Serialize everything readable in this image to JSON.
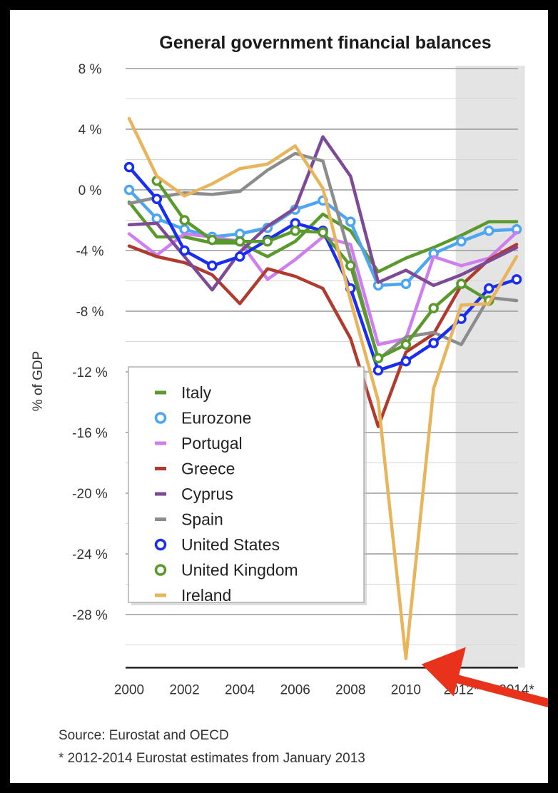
{
  "chart_data": {
    "type": "line",
    "title": "General government financial balances",
    "ylabel": "% of GDP",
    "xlabel": "",
    "x": [
      2000,
      2001,
      2002,
      2003,
      2004,
      2005,
      2006,
      2007,
      2008,
      2009,
      2010,
      2011,
      2012,
      2013,
      2014
    ],
    "xticks": [
      {
        "value": 2000,
        "label": "2000"
      },
      {
        "value": 2002,
        "label": "2002"
      },
      {
        "value": 2004,
        "label": "2004"
      },
      {
        "value": 2006,
        "label": "2006"
      },
      {
        "value": 2008,
        "label": "2008"
      },
      {
        "value": 2010,
        "label": "2010"
      },
      {
        "value": 2012,
        "label": "2012*"
      },
      {
        "value": 2014,
        "label": "2014*"
      }
    ],
    "yticks": [
      {
        "value": 8,
        "label": "8 %"
      },
      {
        "value": 4,
        "label": "4 %"
      },
      {
        "value": 0,
        "label": "0 %"
      },
      {
        "value": -4,
        "label": "-4 %"
      },
      {
        "value": -8,
        "label": "-8 %"
      },
      {
        "value": -12,
        "label": "-12 %"
      },
      {
        "value": -16,
        "label": "-16 %"
      },
      {
        "value": -20,
        "label": "-20 %"
      },
      {
        "value": -24,
        "label": "-24 %"
      },
      {
        "value": -28,
        "label": "-28 %"
      }
    ],
    "xlim": [
      2000,
      2014
    ],
    "ylim": [
      -31.5,
      8
    ],
    "grid": true,
    "shaded_region": {
      "x_from": 2011.8,
      "x_to": 2014.3,
      "color": "#e4e4e4"
    },
    "legend_position": "bottom-left",
    "series": [
      {
        "name": "Italy",
        "color": "#5a9a2c",
        "marker": "none",
        "values": [
          -0.8,
          -3.1,
          -3.1,
          -3.5,
          -3.5,
          -4.4,
          -3.4,
          -1.6,
          -2.7,
          -5.4,
          -4.5,
          -3.8,
          -3.0,
          -2.1,
          -2.1
        ]
      },
      {
        "name": "Eurozone",
        "color": "#4ea6f0",
        "marker": "circle",
        "values": [
          0.0,
          -1.9,
          -2.6,
          -3.1,
          -2.9,
          -2.5,
          -1.3,
          -0.7,
          -2.1,
          -6.3,
          -6.2,
          -4.2,
          -3.4,
          -2.7,
          -2.6
        ]
      },
      {
        "name": "Portugal",
        "color": "#cf7ef0",
        "marker": "none",
        "values": [
          -2.9,
          -4.3,
          -2.9,
          -3.1,
          -3.4,
          -5.9,
          -4.6,
          -3.1,
          -3.6,
          -10.2,
          -9.8,
          -4.4,
          -5.0,
          -4.5,
          -2.8
        ]
      },
      {
        "name": "Greece",
        "color": "#b03a2e",
        "marker": "none",
        "values": [
          -3.7,
          -4.4,
          -4.8,
          -5.6,
          -7.5,
          -5.2,
          -5.7,
          -6.5,
          -9.8,
          -15.6,
          -10.7,
          -9.5,
          -6.3,
          -4.6,
          -3.6
        ]
      },
      {
        "name": "Cyprus",
        "color": "#7d4a96",
        "marker": "none",
        "values": [
          -2.3,
          -2.2,
          -4.4,
          -6.6,
          -4.1,
          -2.4,
          -1.2,
          3.5,
          0.9,
          -6.1,
          -5.3,
          -6.3,
          -5.6,
          -4.7,
          -3.8
        ]
      },
      {
        "name": "Spain",
        "color": "#8c8c8c",
        "marker": "none",
        "values": [
          -0.9,
          -0.5,
          -0.2,
          -0.3,
          -0.1,
          1.3,
          2.4,
          1.9,
          -4.5,
          -11.2,
          -9.7,
          -9.4,
          -10.2,
          -7.1,
          -7.3
        ]
      },
      {
        "name": "United States",
        "color": "#1a2ef0",
        "marker": "circle",
        "values": [
          1.5,
          -0.6,
          -4.0,
          -5.0,
          -4.4,
          -3.3,
          -2.2,
          -2.7,
          -6.5,
          -11.9,
          -11.3,
          -10.1,
          -8.5,
          -6.5,
          -5.9
        ]
      },
      {
        "name": "United Kingdom",
        "color": "#5a9a2c",
        "marker": "circle",
        "values": [
          null,
          0.6,
          -2.0,
          -3.3,
          -3.4,
          -3.4,
          -2.7,
          -2.8,
          -5.0,
          -11.1,
          -10.2,
          -7.8,
          -6.2,
          -7.3,
          null
        ]
      },
      {
        "name": "Ireland",
        "color": "#e8b45c",
        "marker": "none",
        "values": [
          4.7,
          0.9,
          -0.4,
          0.4,
          1.4,
          1.7,
          2.9,
          0.1,
          -7.3,
          -13.9,
          -30.9,
          -13.1,
          -7.6,
          -7.5,
          -4.4
        ]
      }
    ],
    "legend": [
      "Italy",
      "Eurozone",
      "Portugal",
      "Greece",
      "Cyprus",
      "Spain",
      "United States",
      "United Kingdom",
      "Ireland"
    ],
    "footer": [
      "Source: Eurostat and OECD",
      "* 2012-2014 Eurostat estimates from January 2013"
    ],
    "annotation": {
      "type": "arrow",
      "color": "#e8321c",
      "points_to": {
        "x": 2010,
        "y": -30.9
      }
    }
  }
}
